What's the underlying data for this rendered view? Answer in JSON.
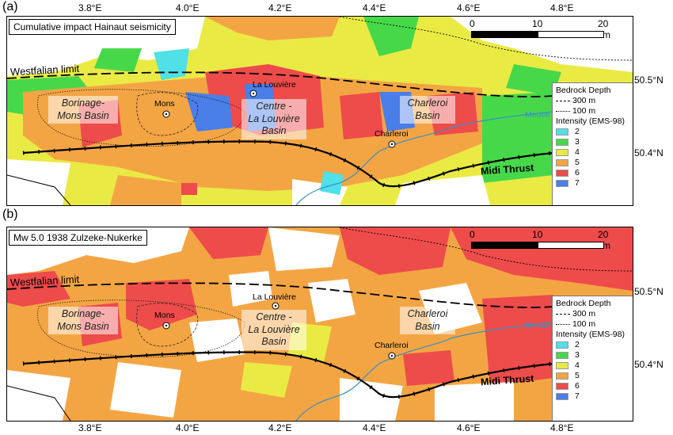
{
  "axes": {
    "lon_ticks": [
      "3.8°E",
      "4.0°E",
      "4.2°E",
      "4.4°E",
      "4.6°E",
      "4.8°E"
    ],
    "lat_ticks": [
      "50.5°N",
      "50.4°N"
    ]
  },
  "panels": [
    {
      "letter": "(a)",
      "title": "Cumulative impact Hainaut seismicity",
      "features": {
        "westfalian": "Westfalian limit",
        "midi": "Midi Thrust",
        "meuse": "Meuse",
        "basins": [
          {
            "line1": "Borinage-",
            "line2": "Mons Basin"
          },
          {
            "line1": "Centre -",
            "line2": "La Louvière",
            "line3": "Basin"
          },
          {
            "line1": "Charleroi",
            "line2": "Basin"
          }
        ],
        "cities": [
          "La Louvière",
          "Mons",
          "Charleroi"
        ]
      },
      "scale": {
        "t0": "0",
        "t1": "10",
        "t2": "20 km"
      }
    },
    {
      "letter": "(b)",
      "title": "Mw 5.0 1938 Zulzeke-Nukerke",
      "features": {
        "westfalian": "Westfalian limit",
        "midi": "Midi Thrust",
        "meuse": "Meuse",
        "basins": [
          {
            "line1": "Borinage-",
            "line2": "Mons Basin"
          },
          {
            "line1": "Centre -",
            "line2": "La Louvière",
            "line3": "Basin"
          },
          {
            "line1": "Charleroi",
            "line2": "Basin"
          }
        ],
        "cities": [
          "La Louvière",
          "Mons",
          "Charleroi"
        ]
      },
      "scale": {
        "t0": "0",
        "t1": "10",
        "t2": "20 km"
      }
    }
  ],
  "legend": {
    "bedrock_title": "Bedrock Depth",
    "bedrock_300": "300 m",
    "bedrock_100": "100 m",
    "intensity_title": "Intensity (EMS-98)",
    "classes": [
      {
        "label": "2",
        "color": "#4fe0e8"
      },
      {
        "label": "3",
        "color": "#47d84a"
      },
      {
        "label": "4",
        "color": "#eaea45"
      },
      {
        "label": "5",
        "color": "#f3a544"
      },
      {
        "label": "6",
        "color": "#ee4b4b"
      },
      {
        "label": "7",
        "color": "#4a7ee8"
      }
    ]
  }
}
